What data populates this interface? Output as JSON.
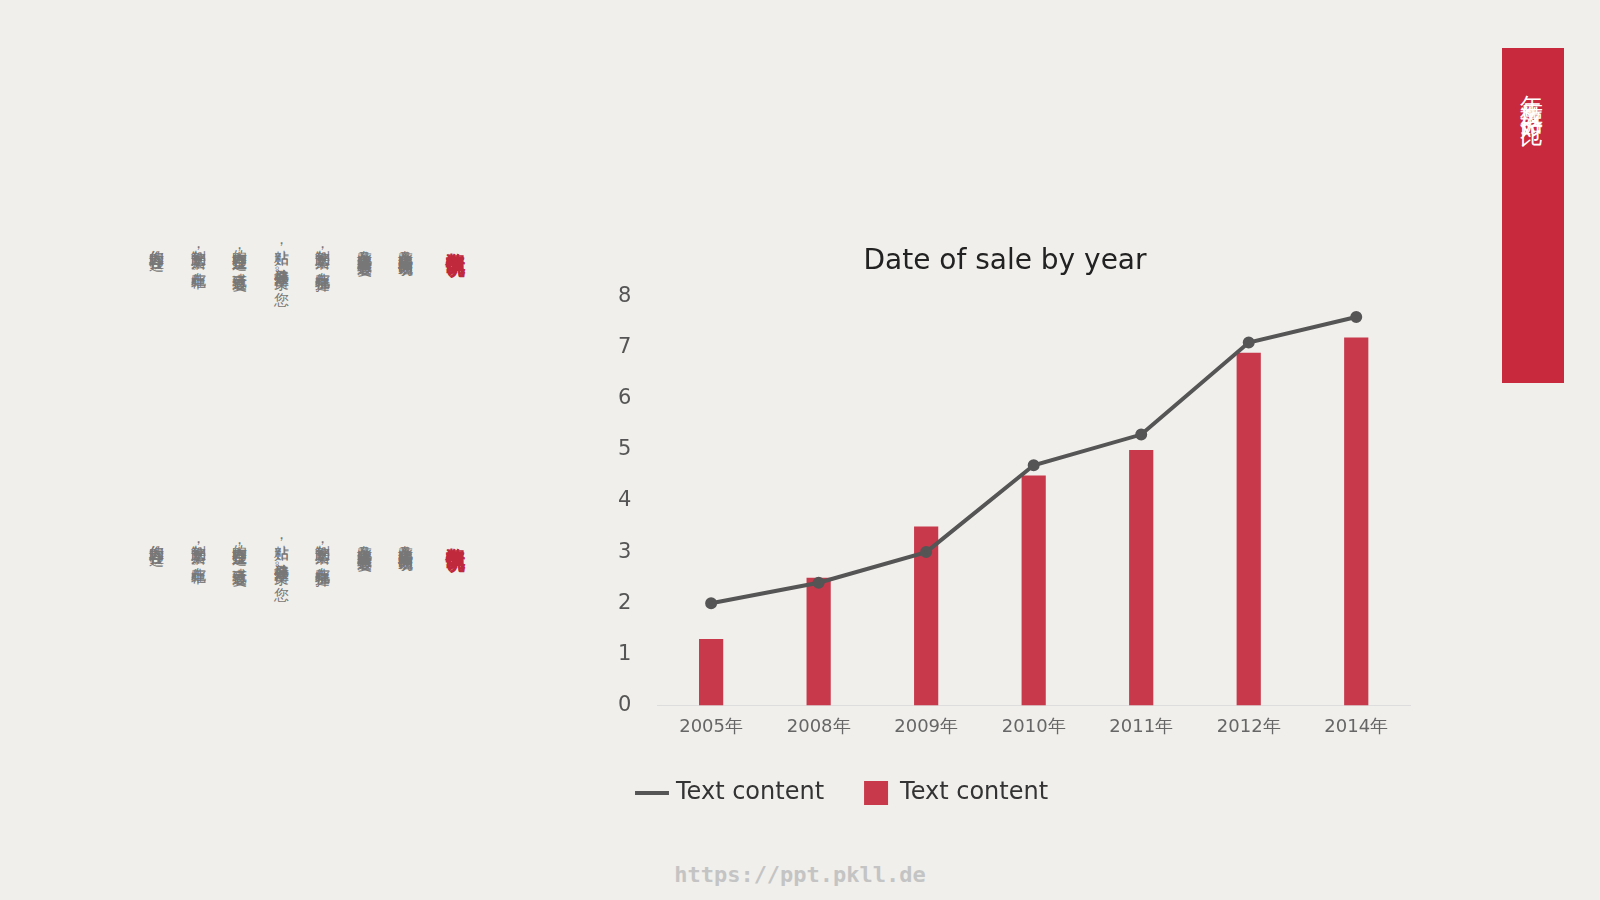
{
  "slide_title": "年度数据对比",
  "sections": [
    {
      "heading": "数据情况说明",
      "lines": [
        "在此录入上述图表的描述说明，",
        "在此录入上述图表或者通过复",
        "制您的文本后，在此框中选择",
        "粘贴，并选择只保留文字。您",
        "的内容打在这里，或者通过复",
        "制您的文本后，在此框中。",
        "您的内容打在这"
      ]
    },
    {
      "heading": "数据情况说明",
      "lines": [
        "在此录入上述图表的描述说明，",
        "在此录入上述图表或者通过复",
        "制您的文本后，在此框中选择",
        "粘贴，并选择只保留文字。您",
        "的内容打在这里，或者通过复",
        "制您的文本后，在此框中。",
        "您的内容打在这"
      ]
    }
  ],
  "watermark": "https://ppt.pkll.de",
  "chart_data": {
    "type": "bar",
    "title": "Date of sale by year",
    "categories": [
      "2005年",
      "2008年",
      "2009年",
      "2010年",
      "2011年",
      "2012年",
      "2014年"
    ],
    "series": [
      {
        "name": "Text content",
        "type": "line",
        "color": "#555555",
        "marker": "circle",
        "values": [
          2.0,
          2.4,
          3.0,
          4.7,
          5.3,
          7.1,
          7.6
        ]
      },
      {
        "name": "Text content",
        "type": "bar",
        "color": "#c8394b",
        "values": [
          1.3,
          2.5,
          3.5,
          4.5,
          5.0,
          6.9,
          7.2
        ]
      }
    ],
    "ylim": [
      0,
      8
    ],
    "yticks": [
      0,
      1,
      2,
      3,
      4,
      5,
      6,
      7,
      8
    ],
    "grid": false,
    "legend": "bottom"
  }
}
